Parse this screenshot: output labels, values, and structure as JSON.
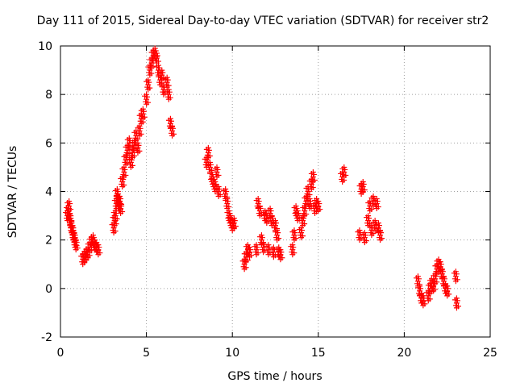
{
  "chart_data": {
    "type": "scatter",
    "title": "Day 111 of 2015, Sidereal Day-to-day VTEC variation (SDTVAR) for receiver str2",
    "xlabel": "GPS time / hours",
    "ylabel": "SDTVAR / TECUs",
    "xlim": [
      0,
      25
    ],
    "ylim": [
      -2,
      10
    ],
    "xticks": [
      0,
      5,
      10,
      15,
      20,
      25
    ],
    "yticks": [
      -2,
      0,
      2,
      4,
      6,
      8,
      10
    ],
    "grid": true,
    "marker": "+",
    "color": "#ff0000",
    "segments": [
      {
        "x": [
          0.4,
          0.45,
          0.5,
          0.55,
          0.6,
          0.65,
          0.7,
          0.75,
          0.8,
          0.85,
          0.9
        ],
        "y": [
          3.0,
          3.2,
          3.4,
          2.9,
          2.7,
          2.5,
          2.4,
          2.2,
          2.1,
          1.9,
          1.8
        ]
      },
      {
        "x": [
          1.3,
          1.4,
          1.5,
          1.6,
          1.7,
          1.8,
          1.9,
          2.0,
          2.1,
          2.2
        ],
        "y": [
          1.2,
          1.3,
          1.4,
          1.5,
          1.7,
          1.9,
          2.0,
          1.8,
          1.7,
          1.6
        ]
      },
      {
        "x": [
          3.1,
          3.15,
          3.2,
          3.25,
          3.3,
          3.35,
          3.4,
          3.45,
          3.5
        ],
        "y": [
          2.5,
          2.8,
          3.0,
          3.5,
          3.9,
          3.7,
          3.4,
          3.6,
          3.3
        ]
      },
      {
        "x": [
          3.6,
          3.7,
          3.8,
          3.9,
          4.0,
          4.1,
          4.2,
          4.3,
          4.4,
          4.5,
          4.6,
          4.7,
          4.8
        ],
        "y": [
          4.4,
          4.8,
          5.3,
          5.7,
          6.0,
          5.2,
          5.6,
          5.9,
          6.3,
          5.8,
          6.5,
          7.0,
          7.2
        ]
      },
      {
        "x": [
          5.0,
          5.1,
          5.2,
          5.3,
          5.4,
          5.5,
          5.6,
          5.7,
          5.8,
          5.9,
          6.0
        ],
        "y": [
          7.8,
          8.4,
          9.0,
          9.3,
          9.6,
          9.7,
          9.5,
          9.0,
          8.6,
          8.8,
          8.2
        ]
      },
      {
        "x": [
          6.2,
          6.3,
          6.4,
          6.5
        ],
        "y": [
          8.5,
          8.0,
          6.8,
          6.5
        ]
      },
      {
        "x": [
          8.5,
          8.6,
          8.7,
          8.8,
          8.9,
          9.0,
          9.1,
          9.2
        ],
        "y": [
          5.2,
          5.6,
          5.0,
          4.6,
          4.4,
          4.2,
          4.8,
          4.0
        ]
      },
      {
        "x": [
          9.6,
          9.7,
          9.8,
          9.9,
          10.0,
          10.1
        ],
        "y": [
          3.9,
          3.5,
          3.0,
          2.8,
          2.6,
          2.7
        ]
      },
      {
        "x": [
          10.7,
          10.8,
          10.9,
          11.0
        ],
        "y": [
          1.0,
          1.3,
          1.6,
          1.5
        ]
      },
      {
        "x": [
          11.4,
          11.5,
          11.6,
          11.7,
          11.8,
          11.9,
          12.0,
          12.1,
          12.2,
          12.3,
          12.4,
          12.5,
          12.6,
          12.7,
          12.8
        ],
        "y": [
          1.6,
          3.5,
          3.2,
          2.0,
          1.7,
          3.0,
          2.9,
          1.6,
          3.1,
          2.8,
          1.5,
          2.6,
          2.2,
          1.5,
          1.4
        ]
      },
      {
        "x": [
          13.5,
          13.6,
          13.7,
          13.8
        ],
        "y": [
          1.6,
          2.2,
          3.2,
          3.0
        ]
      },
      {
        "x": [
          14.0,
          14.1,
          14.2,
          14.3,
          14.4,
          14.5,
          14.6,
          14.7,
          14.8,
          14.9,
          15.0
        ],
        "y": [
          2.3,
          2.8,
          3.2,
          3.6,
          4.0,
          3.5,
          4.3,
          4.6,
          3.3,
          3.5,
          3.4
        ]
      },
      {
        "x": [
          16.4,
          16.5
        ],
        "y": [
          4.6,
          4.8
        ]
      },
      {
        "x": [
          17.4,
          17.5,
          17.6,
          17.7
        ],
        "y": [
          2.2,
          4.1,
          4.2,
          2.1
        ]
      },
      {
        "x": [
          17.9,
          18.0,
          18.1,
          18.2,
          18.3,
          18.4,
          18.5,
          18.6
        ],
        "y": [
          2.8,
          3.4,
          2.4,
          3.6,
          2.6,
          3.5,
          2.5,
          2.2
        ]
      },
      {
        "x": [
          20.8,
          20.9,
          21.0,
          21.1
        ],
        "y": [
          0.3,
          -0.1,
          -0.4,
          -0.5
        ]
      },
      {
        "x": [
          21.4,
          21.5,
          21.6,
          21.7,
          21.8,
          21.9,
          22.0,
          22.1,
          22.2,
          22.3,
          22.4,
          22.5
        ],
        "y": [
          -0.3,
          0.0,
          0.2,
          0.1,
          0.4,
          0.8,
          1.0,
          0.9,
          0.6,
          0.3,
          0.0,
          -0.1
        ]
      },
      {
        "x": [
          23.0,
          23.05
        ],
        "y": [
          0.5,
          -0.6
        ]
      }
    ]
  }
}
